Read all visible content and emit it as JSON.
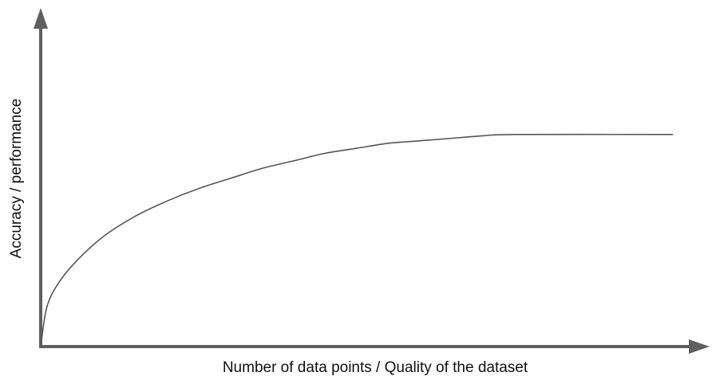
{
  "chart_data": {
    "type": "line",
    "title": "",
    "xlabel": "Number of data points / Quality of the dataset",
    "ylabel": "Accuracy / performance",
    "xlim": [
      0,
      1
    ],
    "ylim": [
      0,
      1
    ],
    "grid": false,
    "legend": "none",
    "series": [
      {
        "x": [
          0,
          0.01,
          0.03,
          0.06,
          0.1,
          0.15,
          0.2,
          0.25,
          0.3,
          0.35,
          0.4,
          0.45,
          0.5,
          0.55,
          0.6,
          0.65,
          0.7,
          0.75,
          1.0
        ],
        "y": [
          0,
          0.16,
          0.26,
          0.35,
          0.44,
          0.52,
          0.58,
          0.63,
          0.67,
          0.71,
          0.74,
          0.77,
          0.79,
          0.81,
          0.82,
          0.83,
          0.84,
          0.845,
          0.845
        ]
      }
    ],
    "colors": {
      "axis": "#5f5f5f",
      "line": "#555555",
      "text": "#111111"
    }
  }
}
